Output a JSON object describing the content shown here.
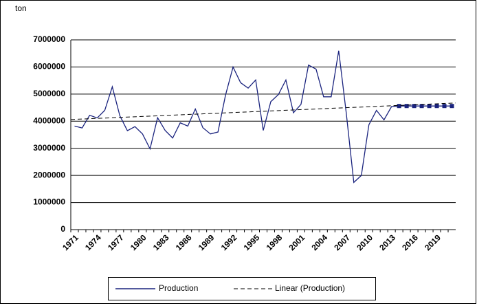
{
  "chart_data": {
    "type": "line",
    "y_label": "ton",
    "categories": [
      "1971",
      null,
      null,
      "1974",
      null,
      null,
      "1977",
      null,
      null,
      "1980",
      null,
      null,
      "1983",
      null,
      null,
      "1986",
      null,
      null,
      "1989",
      null,
      null,
      "1992",
      null,
      null,
      "1995",
      null,
      null,
      "1998",
      null,
      null,
      "2001",
      null,
      null,
      "2004",
      null,
      null,
      "2007",
      null,
      null,
      "2010",
      null,
      null,
      "2013",
      null,
      null,
      "2016",
      null,
      null,
      "2019",
      null,
      null
    ],
    "series": [
      {
        "name": "Production",
        "color": "#1a237e",
        "values": [
          3820000,
          3750000,
          4220000,
          4120000,
          4400000,
          5270000,
          4200000,
          3650000,
          3800000,
          3530000,
          2980000,
          4130000,
          3660000,
          3380000,
          3940000,
          3820000,
          4450000,
          3760000,
          3530000,
          3600000,
          4960000,
          6000000,
          5420000,
          5220000,
          5520000,
          3660000,
          4720000,
          4980000,
          5520000,
          4310000,
          4620000,
          6070000,
          5920000,
          4900000,
          4900000,
          6600000,
          4300000,
          1740000,
          2000000,
          3870000,
          4400000,
          4050000,
          4540000,
          4560000,
          4560000,
          4560000,
          4560000,
          4560000,
          4560000,
          4560000,
          4560000
        ]
      }
    ],
    "trendline": {
      "name": "Linear (Production)",
      "color": "#000000"
    },
    "ylim": [
      0,
      7000000
    ],
    "yticks": [
      0,
      1000000,
      2000000,
      3000000,
      4000000,
      5000000,
      6000000,
      7000000
    ],
    "grid": true
  }
}
